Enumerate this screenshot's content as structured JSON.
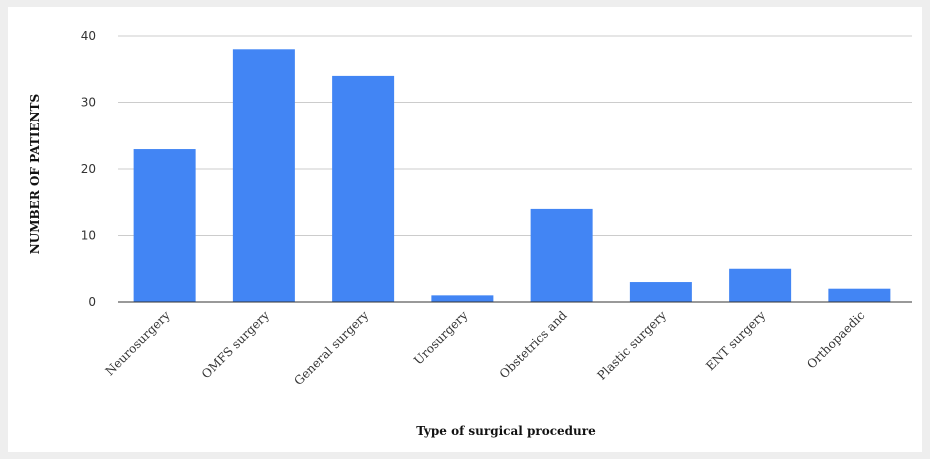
{
  "chart_data": {
    "type": "bar",
    "title": "",
    "xlabel": "Type of surgical procedure",
    "ylabel": "NUMBER OF PATIENTS",
    "categories": [
      "Neurosurgery",
      "OMFS surgery",
      "General surgery",
      "Urosurgery",
      "Obstetrics and",
      "Plastic surgery",
      "ENT surgery",
      "Orthopaedic"
    ],
    "values": [
      23,
      38,
      34,
      1,
      14,
      3,
      5,
      2
    ],
    "ylim": [
      0,
      40
    ],
    "yticks": [
      0,
      10,
      20,
      30,
      40
    ],
    "grid": true,
    "legend": "none",
    "bar_color": "#4285f4",
    "grid_color": "#cccccc",
    "axis_color": "#333333"
  }
}
